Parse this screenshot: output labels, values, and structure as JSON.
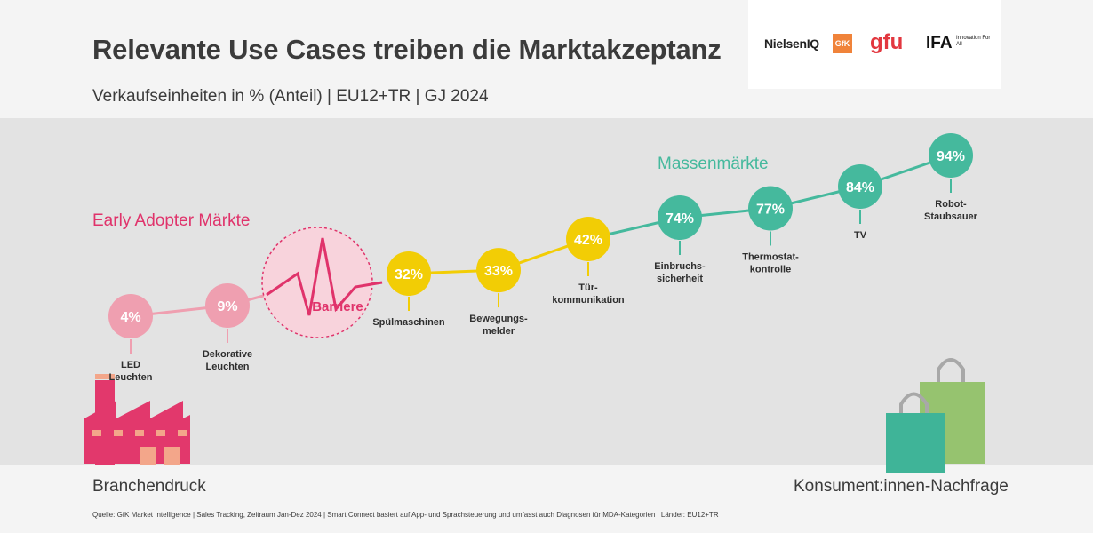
{
  "title": "Relevante Use Cases treiben die Marktakzeptanz",
  "subtitle": "Verkaufseinheiten in % (Anteil) | EU12+TR | GJ 2024",
  "logos": {
    "nielsen": "NielsenIQ",
    "gfk": "GfK",
    "gfu": "gfu",
    "ifa": "IFA",
    "ifa_tagline": "Innovation For All"
  },
  "colors": {
    "early": "#ef9fb0",
    "barrier": "#e0336b",
    "mid": "#f2cd05",
    "mass": "#45b99d",
    "factory": "#e2386c",
    "factory_window": "#f3a68a",
    "bag_back": "#96c36f",
    "bag_front": "#3fb498",
    "handle": "#a8a8a8"
  },
  "chart_data": {
    "type": "line",
    "x": [
      "LED Leuchten",
      "Dekorative Leuchten",
      "Barriere",
      "Spülmaschinen",
      "Bewegungs-melder",
      "Tür-kommunikation",
      "Einbruchs-sicherheit",
      "Thermostat-kontrolle",
      "TV",
      "Robot-Staubsauer"
    ],
    "series": [
      {
        "values": [
          4,
          9,
          null,
          32,
          33,
          42,
          74,
          77,
          84,
          94
        ]
      }
    ],
    "points": [
      {
        "label_lines": [
          "LED",
          "Leuchten"
        ],
        "value": 4,
        "value_label": "4%",
        "segment": "early"
      },
      {
        "label_lines": [
          "Dekorative",
          "Leuchten"
        ],
        "value": 9,
        "value_label": "9%",
        "segment": "early"
      },
      {
        "label_lines": [
          "Spülmaschinen"
        ],
        "value": 32,
        "value_label": "32%",
        "segment": "mid"
      },
      {
        "label_lines": [
          "Bewegungs-",
          "melder"
        ],
        "value": 33,
        "value_label": "33%",
        "segment": "mid"
      },
      {
        "label_lines": [
          "Tür-",
          "kommunikation"
        ],
        "value": 42,
        "value_label": "42%",
        "segment": "mid"
      },
      {
        "label_lines": [
          "Einbruchs-",
          "sicherheit"
        ],
        "value": 74,
        "value_label": "74%",
        "segment": "mass"
      },
      {
        "label_lines": [
          "Thermostat-",
          "kontrolle"
        ],
        "value": 77,
        "value_label": "77%",
        "segment": "mass"
      },
      {
        "label_lines": [
          "TV"
        ],
        "value": 84,
        "value_label": "84%",
        "segment": "mass"
      },
      {
        "label_lines": [
          "Robot-",
          "Staubsauer"
        ],
        "value": 94,
        "value_label": "94%",
        "segment": "mass"
      }
    ],
    "barrier_label": "Barriere",
    "segment_labels": {
      "early": "Early Adopter Märkte",
      "mass": "Massenmärkte"
    },
    "unit": "%"
  },
  "footer": {
    "left": "Branchendruck",
    "right": "Konsument:innen-Nachfrage"
  },
  "source": "Quelle: GfK Market Intelligence | Sales Tracking, Zeitraum Jan-Dez 2024 | Smart Connect basiert auf App- und Sprachsteuerung und umfasst auch Diagnosen für MDA-Kategorien | Länder: EU12+TR"
}
